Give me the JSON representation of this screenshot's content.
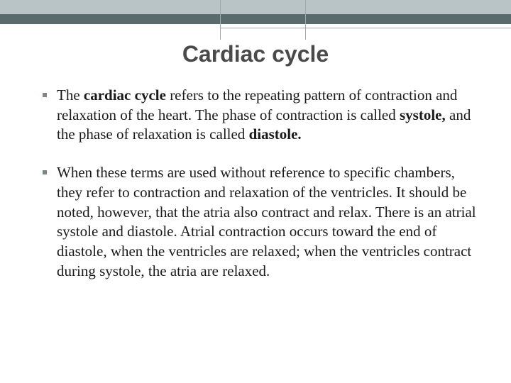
{
  "slide": {
    "title": "Cardiac cycle",
    "title_fontsize": 32,
    "title_color": "#4a4a4a",
    "body_fontsize": 21,
    "bullets": [
      {
        "segments": [
          {
            "text": "The ",
            "bold": false
          },
          {
            "text": "cardiac cycle ",
            "bold": true
          },
          {
            "text": "refers to the repeating pattern of contraction and relaxation of the heart. The phase of contraction is called ",
            "bold": false
          },
          {
            "text": "systole, ",
            "bold": true
          },
          {
            "text": "and the phase of relaxation is called ",
            "bold": false
          },
          {
            "text": "diastole.",
            "bold": true
          }
        ]
      },
      {
        "segments": [
          {
            "text": "When these terms are used without reference to specific chambers, they refer to contraction and relaxation of the ventricles. It should be noted, however, that the atria also contract and relax. There is an atrial systole and diastole. Atrial contraction occurs toward the end of diastole, when the ventricles are relaxed; when the ventricles contract during systole, the atria are relaxed.",
            "bold": false
          }
        ]
      }
    ]
  },
  "theme": {
    "band_light": "#b9c4c6",
    "band_dark": "#5a6b6e",
    "bullet_color": "#7a8688",
    "background": "#ffffff",
    "accent_line": "#9fa8aa"
  }
}
